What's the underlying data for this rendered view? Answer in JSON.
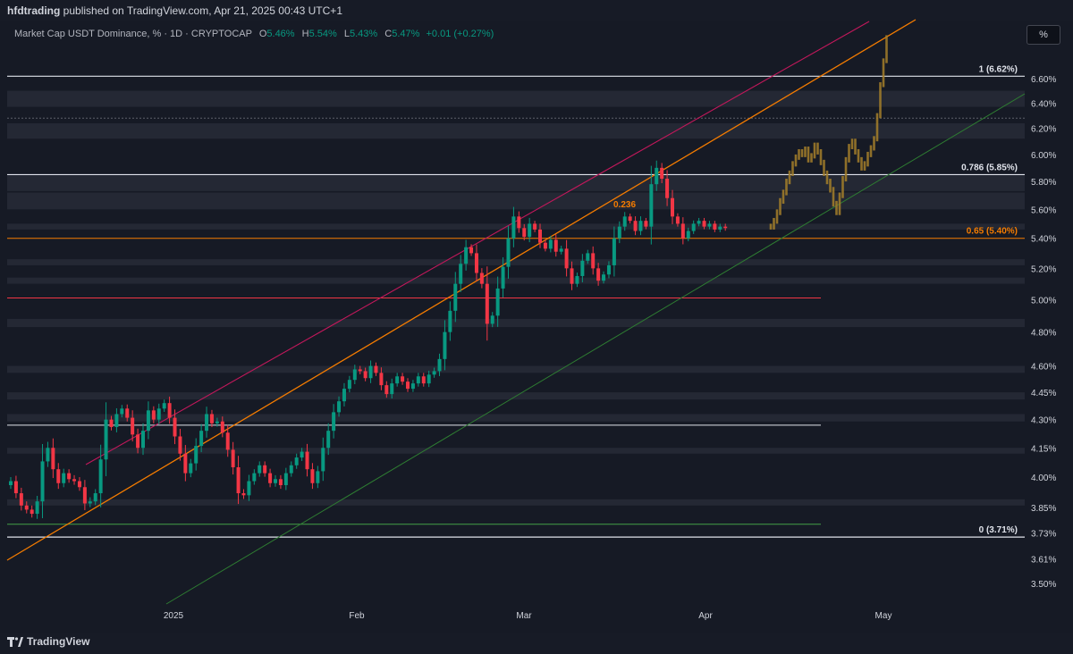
{
  "header": {
    "publisher": "hfdtrading",
    "published_text": "published on TradingView.com, Apr 21, 2025 00:43 UTC+1"
  },
  "legend": {
    "symbol": "Market Cap USDT Dominance, %",
    "interval": "1D",
    "exchange": "CRYPTOCAP",
    "open_label": "O",
    "open": "5.46%",
    "high_label": "H",
    "high": "5.54%",
    "low_label": "L",
    "low": "5.43%",
    "close_label": "C",
    "close": "5.47%",
    "change": "+0.01 (+0.27%)"
  },
  "toolbar": {
    "scale_button": "%"
  },
  "footer": {
    "brand": "TradingView"
  },
  "colors": {
    "up": "#089981",
    "down": "#f23645",
    "background": "#161a25",
    "channel_orange": "#f57c00",
    "channel_red": "#c2185b",
    "channel_green": "#2e7d32",
    "projection": "#a47f2a",
    "zone": "#2a2e39"
  },
  "chart_data": {
    "type": "candlestick",
    "y_scale": "log",
    "ylim": [
      3.45,
      6.98
    ],
    "x_tick_labels": [
      "2025",
      "Feb",
      "Mar",
      "Apr",
      "May"
    ],
    "y_tick_labels": [
      "6.60%",
      "6.40%",
      "6.20%",
      "6.00%",
      "5.80%",
      "5.60%",
      "5.40%",
      "5.20%",
      "5.00%",
      "4.80%",
      "4.60%",
      "4.45%",
      "4.30%",
      "4.15%",
      "4.00%",
      "3.85%",
      "3.73%",
      "3.61%",
      "3.50%"
    ],
    "y_ticks": [
      6.6,
      6.4,
      6.2,
      6.0,
      5.8,
      5.6,
      5.4,
      5.2,
      5.0,
      4.8,
      4.6,
      4.45,
      4.3,
      4.15,
      4.0,
      3.85,
      3.73,
      3.61,
      3.5
    ],
    "fib_levels": [
      {
        "label": "1 (6.62%)",
        "value": 6.62
      },
      {
        "label": "0.786 (5.85%)",
        "value": 5.85
      },
      {
        "label": "0.65 (5.40%)",
        "value": 5.4
      },
      {
        "label": "0 (3.71%)",
        "value": 3.71
      }
    ],
    "channel_labels": [
      "0.236"
    ],
    "closes": [
      3.98,
      3.92,
      3.86,
      3.84,
      3.82,
      3.88,
      4.08,
      4.15,
      4.04,
      3.97,
      4.02,
      3.99,
      3.98,
      3.95,
      3.87,
      3.88,
      3.92,
      4.09,
      4.3,
      4.26,
      4.33,
      4.36,
      4.31,
      4.22,
      4.15,
      4.24,
      4.35,
      4.3,
      4.36,
      4.39,
      4.31,
      4.21,
      4.12,
      4.02,
      4.07,
      4.16,
      4.24,
      4.33,
      4.28,
      4.29,
      4.23,
      4.14,
      4.05,
      3.92,
      3.91,
      3.98,
      4.02,
      4.06,
      4.02,
      3.97,
      3.99,
      3.96,
      4.02,
      4.06,
      4.1,
      4.13,
      4.04,
      3.97,
      4.03,
      4.15,
      4.24,
      4.34,
      4.4,
      4.47,
      4.52,
      4.58,
      4.57,
      4.53,
      4.6,
      4.56,
      4.49,
      4.44,
      4.5,
      4.54,
      4.51,
      4.47,
      4.5,
      4.54,
      4.5,
      4.55,
      4.57,
      4.64,
      4.8,
      4.93,
      5.1,
      5.23,
      5.34,
      5.3,
      5.17,
      5.1,
      4.85,
      4.9,
      5.07,
      5.21,
      5.4,
      5.55,
      5.47,
      5.41,
      5.5,
      5.46,
      5.37,
      5.33,
      5.39,
      5.31,
      5.33,
      5.2,
      5.1,
      5.15,
      5.25,
      5.3,
      5.2,
      5.12,
      5.16,
      5.22,
      5.4,
      5.48,
      5.55,
      5.52,
      5.45,
      5.52,
      5.48,
      5.78,
      5.9,
      5.82,
      5.68,
      5.55,
      5.5,
      5.4,
      5.45,
      5.5,
      5.52,
      5.48,
      5.5,
      5.46,
      5.48,
      5.47
    ],
    "projection": [
      5.48,
      5.52,
      5.58,
      5.66,
      5.72,
      5.8,
      5.86,
      5.93,
      5.98,
      6.02,
      6.0,
      6.04,
      5.96,
      5.99,
      6.07,
      6.02,
      5.94,
      5.86,
      5.8,
      5.74,
      5.64,
      5.58,
      5.7,
      5.82,
      5.96,
      6.06,
      6.1,
      6.02,
      5.96,
      5.9,
      5.93,
      6.0,
      6.05,
      6.12,
      6.3,
      6.55,
      6.75,
      6.95
    ]
  }
}
